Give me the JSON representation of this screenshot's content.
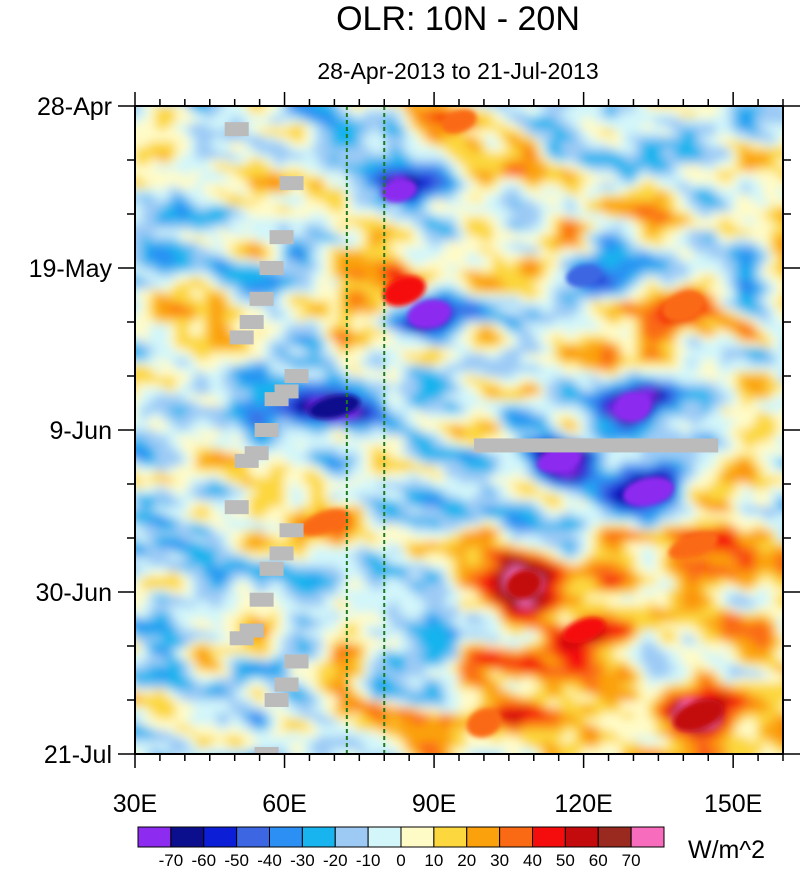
{
  "chart_data": {
    "type": "heatmap",
    "title": "OLR: 10N - 20N",
    "subtitle": "28-Apr-2013 to 21-Jul-2013",
    "xlim": [
      30,
      160
    ],
    "x_tick_values": [
      30,
      60,
      90,
      120,
      150
    ],
    "x_tick_labels": [
      "30E",
      "60E",
      "90E",
      "120E",
      "150E"
    ],
    "y_range_dates": [
      "2013-04-28",
      "2013-07-21"
    ],
    "y_tick_labels": [
      "28-Apr",
      "19-May",
      "9-Jun",
      "30-Jun",
      "21-Jul"
    ],
    "y_tick_dates": [
      "2013-04-28",
      "2013-05-19",
      "2013-06-09",
      "2013-06-30",
      "2013-07-21"
    ],
    "reference_lines_lon": [
      72.5,
      80
    ],
    "reference_line_color": "#1e7a1e",
    "colorbar": {
      "unit_label": "W/m^2",
      "level_labels": [
        "-70",
        "-60",
        "-50",
        "-40",
        "-30",
        "-20",
        "-10",
        "0",
        "10",
        "20",
        "30",
        "40",
        "50",
        "60",
        "70"
      ],
      "colors": [
        "#8d2cf0",
        "#0b0f8e",
        "#0c1fd6",
        "#3d66e2",
        "#2c8ff3",
        "#18b4ef",
        "#9ccaf5",
        "#d2f6fa",
        "#fffbc7",
        "#fcd73e",
        "#fba10c",
        "#fa6a14",
        "#f50d0d",
        "#c30b0e",
        "#9a2a20",
        "#f76cbd"
      ],
      "missing_color": "#bbbbbb"
    },
    "features": [
      {
        "lon": 83,
        "date": "2013-05-09",
        "value": -75
      },
      {
        "lon": 89,
        "date": "2013-05-25",
        "value": -72
      },
      {
        "lon": 70,
        "date": "2013-06-06",
        "value": -62
      },
      {
        "lon": 130,
        "date": "2013-06-06",
        "value": -80
      },
      {
        "lon": 115,
        "date": "2013-06-13",
        "value": -78
      },
      {
        "lon": 133,
        "date": "2013-06-17",
        "value": -78
      },
      {
        "lon": 120,
        "date": "2013-05-20",
        "value": -45
      },
      {
        "lon": 84,
        "date": "2013-05-22",
        "value": 48
      },
      {
        "lon": 68,
        "date": "2013-06-21",
        "value": 35
      },
      {
        "lon": 108,
        "date": "2013-06-29",
        "value": 55
      },
      {
        "lon": 120,
        "date": "2013-07-05",
        "value": 48
      },
      {
        "lon": 143,
        "date": "2013-07-16",
        "value": 52
      },
      {
        "lon": 95,
        "date": "2013-04-30",
        "value": 32
      },
      {
        "lon": 140,
        "date": "2013-05-24",
        "value": 30
      },
      {
        "lon": 142,
        "date": "2013-06-24",
        "value": 35
      },
      {
        "lon": 100,
        "date": "2013-07-17",
        "value": 32
      }
    ],
    "missing_data": [
      {
        "lon_start": 98,
        "lon_end": 147,
        "date": "2013-06-11"
      }
    ]
  }
}
